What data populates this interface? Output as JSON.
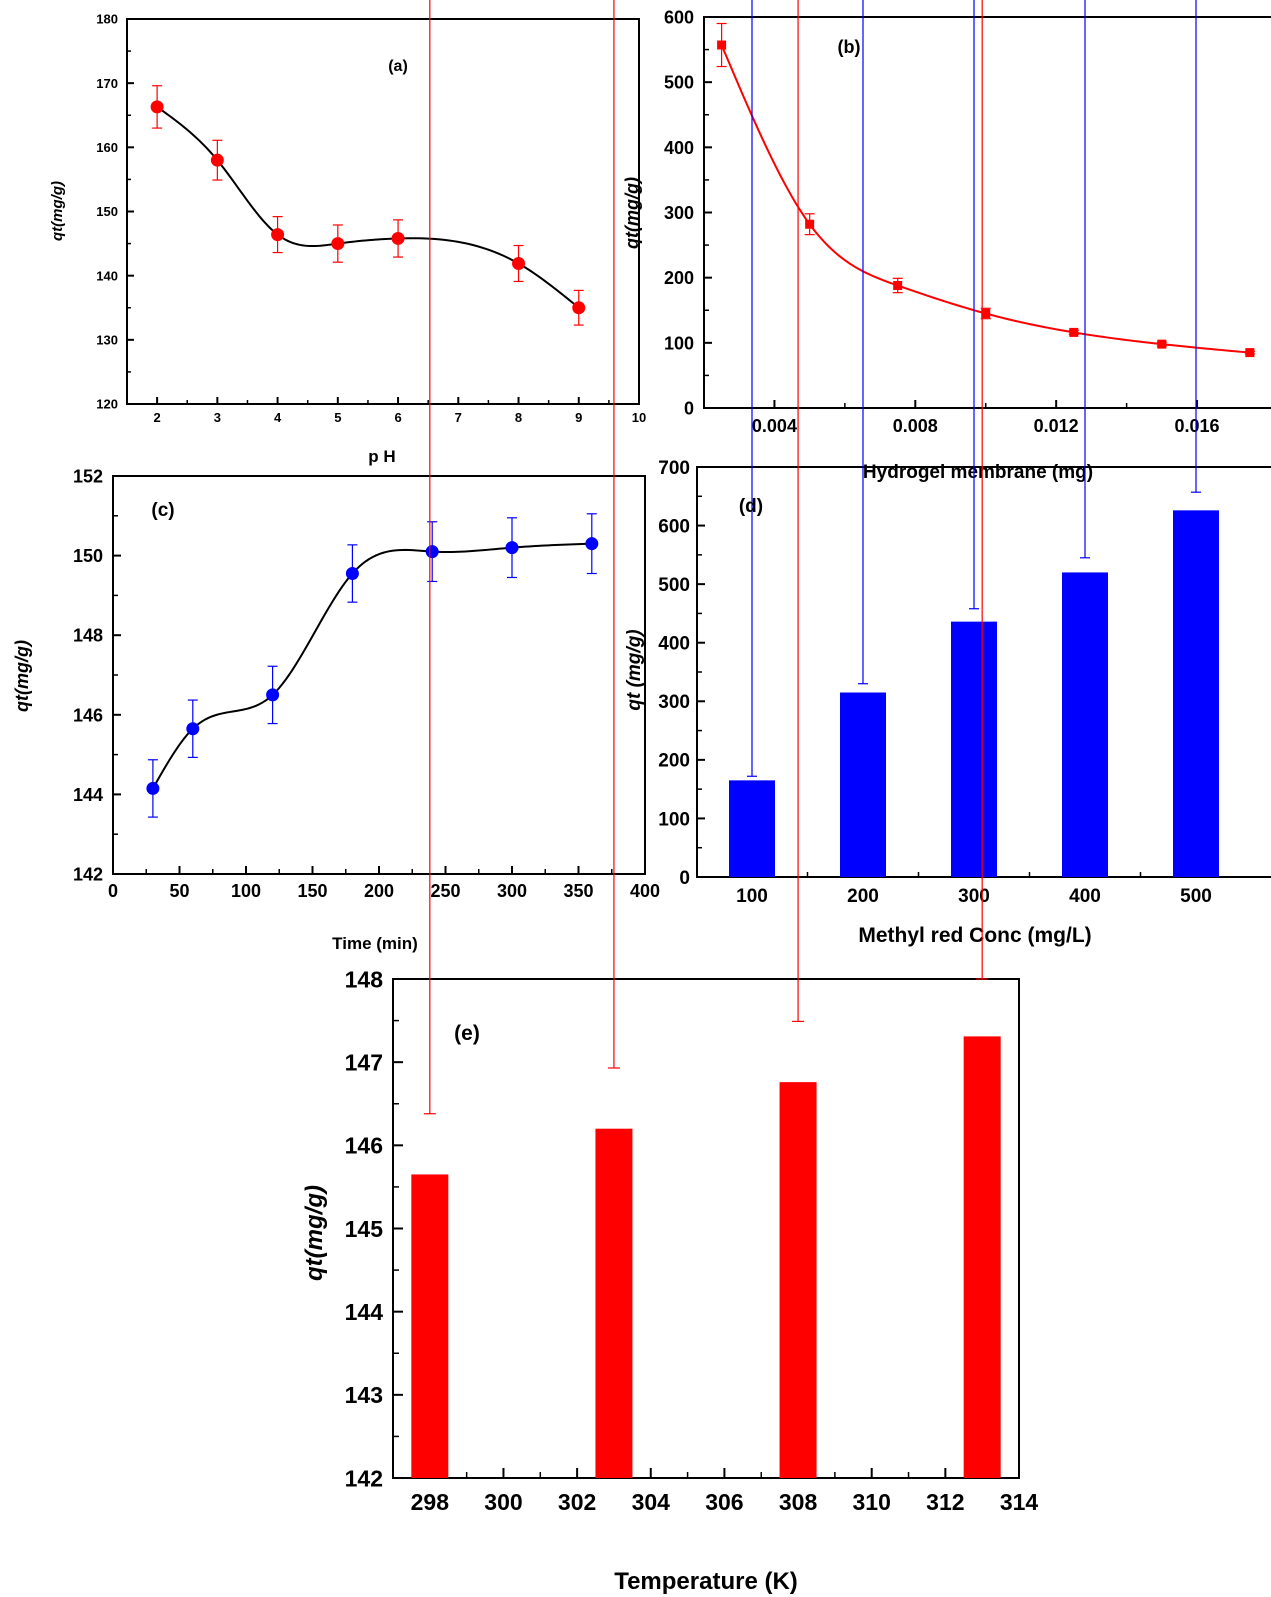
{
  "chart_data": [
    {
      "id": "a",
      "type": "scatter",
      "panel_label": "(a)",
      "xlabel": "p H",
      "ylabel": "qt(mg/g)",
      "xlim": [
        1.5,
        10
      ],
      "ylim": [
        120,
        180
      ],
      "xticks": [
        2,
        3,
        4,
        5,
        6,
        7,
        8,
        9,
        10
      ],
      "yticks": [
        120,
        130,
        140,
        150,
        160,
        170,
        180
      ],
      "marker_color": "#ff0000",
      "line_color": "#000000",
      "error_color": "#ff0000",
      "points": [
        {
          "x": 2,
          "y": 166.3,
          "err": 3.3
        },
        {
          "x": 3,
          "y": 158.0,
          "err": 3.1
        },
        {
          "x": 4,
          "y": 146.4,
          "err": 2.8
        },
        {
          "x": 5,
          "y": 145.0,
          "err": 2.9
        },
        {
          "x": 6,
          "y": 145.8,
          "err": 2.9
        },
        {
          "x": 8,
          "y": 141.9,
          "err": 2.8
        },
        {
          "x": 9,
          "y": 135.0,
          "err": 2.7
        }
      ]
    },
    {
      "id": "b",
      "type": "scatter",
      "panel_label": "(b)",
      "xlabel": "Hydrogel membrane (mg)",
      "ylabel": "qt(mg/g)",
      "xlim": [
        0.002,
        0.0181
      ],
      "ylim": [
        0,
        600
      ],
      "xticks": [
        0.004,
        0.008,
        0.012,
        0.016
      ],
      "xtick_labels": [
        "0.004",
        "0.008",
        "0.012",
        "0.016"
      ],
      "yticks": [
        0,
        100,
        200,
        300,
        400,
        500,
        600
      ],
      "marker_color": "#ff0000",
      "line_color": "#ff0000",
      "error_color": "#ff0000",
      "points": [
        {
          "x": 0.0025,
          "y": 557,
          "err": 33
        },
        {
          "x": 0.005,
          "y": 282,
          "err": 16
        },
        {
          "x": 0.0075,
          "y": 188,
          "err": 11
        },
        {
          "x": 0.01,
          "y": 145,
          "err": 8
        },
        {
          "x": 0.0125,
          "y": 116,
          "err": 3
        },
        {
          "x": 0.015,
          "y": 98,
          "err": 3
        },
        {
          "x": 0.0175,
          "y": 85,
          "err": 2
        }
      ]
    },
    {
      "id": "c",
      "type": "scatter",
      "panel_label": "(c)",
      "xlabel": "Time (min)",
      "ylabel": "qt(mg/g)",
      "xlim": [
        0,
        400
      ],
      "ylim": [
        142,
        152
      ],
      "xticks": [
        0,
        50,
        100,
        150,
        200,
        250,
        300,
        350,
        400
      ],
      "yticks": [
        142,
        144,
        146,
        148,
        150,
        152
      ],
      "marker_color": "#0000ff",
      "line_color": "#000000",
      "error_color": "#0000ff",
      "points": [
        {
          "x": 30,
          "y": 144.15,
          "err": 0.72
        },
        {
          "x": 60,
          "y": 145.65,
          "err": 0.72
        },
        {
          "x": 120,
          "y": 146.5,
          "err": 0.72
        },
        {
          "x": 180,
          "y": 149.55,
          "err": 0.72
        },
        {
          "x": 240,
          "y": 150.1,
          "err": 0.75
        },
        {
          "x": 300,
          "y": 150.2,
          "err": 0.75
        },
        {
          "x": 360,
          "y": 150.3,
          "err": 0.75
        }
      ]
    },
    {
      "id": "d",
      "type": "bar",
      "panel_label": "(d)",
      "xlabel": "Methyl red Conc (mg/L)",
      "ylabel": "qt (mg/g)",
      "categories": [
        "100",
        "200",
        "300",
        "400",
        "500"
      ],
      "values": [
        165,
        315,
        436,
        520,
        626
      ],
      "errors": [
        7,
        15,
        22,
        25,
        31
      ],
      "ylim": [
        0,
        700
      ],
      "yticks": [
        0,
        100,
        200,
        300,
        400,
        500,
        600,
        700
      ],
      "bar_color": "#0000ff",
      "error_color": "#0000ff"
    },
    {
      "id": "e",
      "type": "bar",
      "panel_label": "(e)",
      "xlabel": "Temperature (K)",
      "ylabel": "qt(mg/g)",
      "x": [
        298,
        303,
        308,
        313
      ],
      "values": [
        145.65,
        146.2,
        146.76,
        147.31
      ],
      "errors": [
        0.73,
        0.73,
        0.73,
        0.73
      ],
      "xlim": [
        297,
        314
      ],
      "ylim": [
        142,
        148
      ],
      "xticks": [
        298,
        300,
        302,
        304,
        306,
        308,
        310,
        312,
        314
      ],
      "yticks": [
        142,
        143,
        144,
        145,
        146,
        147,
        148
      ],
      "bar_color": "#ff0000",
      "error_color": "#ff0000"
    }
  ]
}
